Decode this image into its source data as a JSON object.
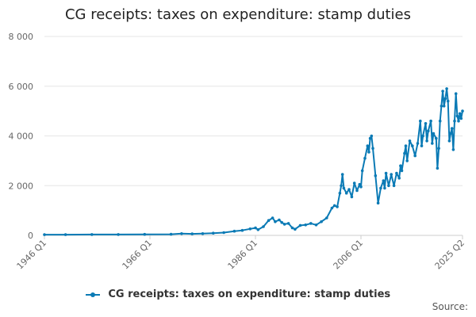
{
  "chart_data": {
    "type": "line",
    "title": "CG receipts: taxes on expenditure: stamp duties",
    "xlabel": "",
    "ylabel": "",
    "x_ticks": [
      "1946 Q1",
      "1966 Q1",
      "1986 Q1",
      "2006 Q1",
      "2025 Q2"
    ],
    "y_ticks": [
      "0",
      "2 000",
      "4 000",
      "6 000",
      "8 000"
    ],
    "ylim": [
      0,
      8000
    ],
    "xlim": [
      1946.0,
      2025.25
    ],
    "grid": true,
    "legend_position": "bottom",
    "series": [
      {
        "name": "CG receipts: taxes on expenditure: stamp duties",
        "color": "#0a7ab5",
        "points": [
          [
            1946.0,
            30
          ],
          [
            1950.0,
            30
          ],
          [
            1955.0,
            35
          ],
          [
            1960.0,
            35
          ],
          [
            1965.0,
            40
          ],
          [
            1970.0,
            45
          ],
          [
            1972.0,
            70
          ],
          [
            1974.0,
            60
          ],
          [
            1976.0,
            70
          ],
          [
            1978.0,
            90
          ],
          [
            1980.0,
            110
          ],
          [
            1982.0,
            170
          ],
          [
            1983.5,
            200
          ],
          [
            1985.0,
            260
          ],
          [
            1986.0,
            300
          ],
          [
            1986.5,
            230
          ],
          [
            1987.5,
            350
          ],
          [
            1988.5,
            600
          ],
          [
            1989.25,
            700
          ],
          [
            1989.75,
            550
          ],
          [
            1990.5,
            620
          ],
          [
            1991.0,
            520
          ],
          [
            1991.5,
            450
          ],
          [
            1992.25,
            480
          ],
          [
            1993.0,
            300
          ],
          [
            1993.5,
            250
          ],
          [
            1994.5,
            400
          ],
          [
            1995.5,
            420
          ],
          [
            1996.5,
            480
          ],
          [
            1997.5,
            420
          ],
          [
            1998.5,
            550
          ],
          [
            1999.5,
            700
          ],
          [
            2000.5,
            1100
          ],
          [
            2001.0,
            1200
          ],
          [
            2001.5,
            1150
          ],
          [
            2002.0,
            1700
          ],
          [
            2002.25,
            2000
          ],
          [
            2002.5,
            2450
          ],
          [
            2002.75,
            1900
          ],
          [
            2003.25,
            1700
          ],
          [
            2003.75,
            1850
          ],
          [
            2004.25,
            1550
          ],
          [
            2004.75,
            2100
          ],
          [
            2005.25,
            1800
          ],
          [
            2005.75,
            2050
          ],
          [
            2006.0,
            1950
          ],
          [
            2006.25,
            2600
          ],
          [
            2006.75,
            3100
          ],
          [
            2007.25,
            3600
          ],
          [
            2007.5,
            3350
          ],
          [
            2007.75,
            3900
          ],
          [
            2008.0,
            4000
          ],
          [
            2008.25,
            3500
          ],
          [
            2008.75,
            2400
          ],
          [
            2009.25,
            1300
          ],
          [
            2009.75,
            1900
          ],
          [
            2010.25,
            2200
          ],
          [
            2010.5,
            1900
          ],
          [
            2010.75,
            2500
          ],
          [
            2011.25,
            2000
          ],
          [
            2011.75,
            2450
          ],
          [
            2012.25,
            2000
          ],
          [
            2012.75,
            2500
          ],
          [
            2013.25,
            2300
          ],
          [
            2013.5,
            2800
          ],
          [
            2013.75,
            2600
          ],
          [
            2014.25,
            3300
          ],
          [
            2014.5,
            3600
          ],
          [
            2014.75,
            3000
          ],
          [
            2015.25,
            3800
          ],
          [
            2015.75,
            3600
          ],
          [
            2016.25,
            3200
          ],
          [
            2016.75,
            3700
          ],
          [
            2017.25,
            4600
          ],
          [
            2017.5,
            3600
          ],
          [
            2017.75,
            4000
          ],
          [
            2018.25,
            4500
          ],
          [
            2018.5,
            3800
          ],
          [
            2018.75,
            4200
          ],
          [
            2019.25,
            4600
          ],
          [
            2019.5,
            3700
          ],
          [
            2019.75,
            4100
          ],
          [
            2020.25,
            3900
          ],
          [
            2020.5,
            2700
          ],
          [
            2020.75,
            3500
          ],
          [
            2021.0,
            4600
          ],
          [
            2021.25,
            5200
          ],
          [
            2021.5,
            5800
          ],
          [
            2021.75,
            5200
          ],
          [
            2022.0,
            5500
          ],
          [
            2022.25,
            5900
          ],
          [
            2022.5,
            5400
          ],
          [
            2022.75,
            3800
          ],
          [
            2023.0,
            4100
          ],
          [
            2023.25,
            4300
          ],
          [
            2023.5,
            3450
          ],
          [
            2023.75,
            4600
          ],
          [
            2024.0,
            5700
          ],
          [
            2024.25,
            4800
          ],
          [
            2024.5,
            4600
          ],
          [
            2024.75,
            4900
          ],
          [
            2025.0,
            4700
          ],
          [
            2025.25,
            5000
          ]
        ]
      }
    ]
  },
  "footer": {
    "source_label": "Source:"
  }
}
